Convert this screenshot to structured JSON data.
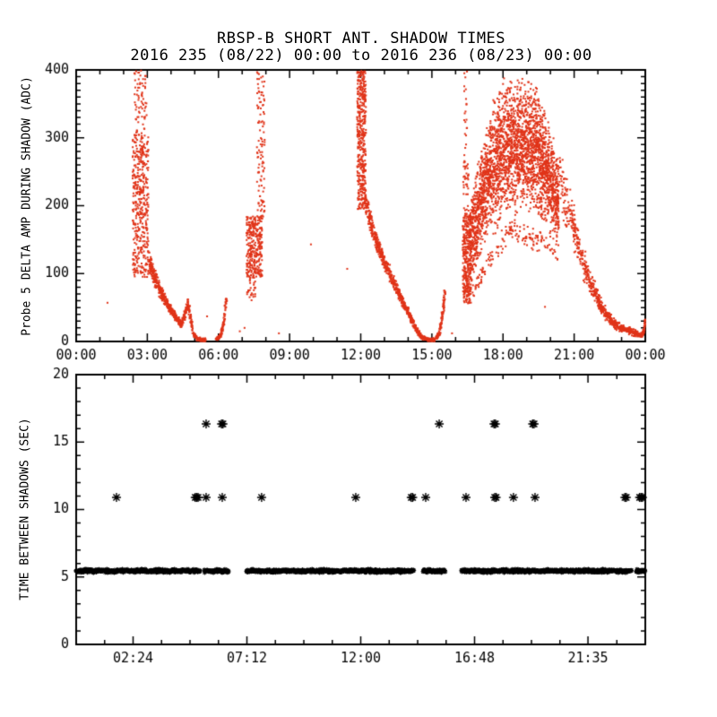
{
  "header": {
    "title": "RBSP-B SHORT ANT. SHADOW TIMES",
    "subtitle": "2016 235 (08/22) 00:00 to 2016 236 (08/23) 00:00"
  },
  "colors": {
    "background": "#ffffff",
    "axis": "#000000",
    "data_red": "#e03318",
    "marker_black": "#000000"
  },
  "chart_data": [
    {
      "type": "scatter",
      "panel": "top",
      "ylabel": "Probe 5 DELTA AMP DURING SHADOW (ADC)",
      "xlim_hours": [
        0,
        24
      ],
      "ylim": [
        0,
        400
      ],
      "x_minor_step_hours": 1,
      "y_minor_step": 10,
      "x_ticks": [
        {
          "h": 0,
          "label": "00:00"
        },
        {
          "h": 3,
          "label": "03:00"
        },
        {
          "h": 6,
          "label": "06:00"
        },
        {
          "h": 9,
          "label": "09:00"
        },
        {
          "h": 12,
          "label": "12:00"
        },
        {
          "h": 15,
          "label": "15:00"
        },
        {
          "h": 18,
          "label": "18:00"
        },
        {
          "h": 21,
          "label": "21:00"
        },
        {
          "h": 24,
          "label": "00:00"
        }
      ],
      "y_ticks": [
        {
          "v": 0,
          "label": "0"
        },
        {
          "v": 100,
          "label": "100"
        },
        {
          "v": 200,
          "label": "200"
        },
        {
          "v": 300,
          "label": "300"
        },
        {
          "v": 400,
          "label": "400"
        }
      ],
      "marker": "pixel-dot",
      "color": "#e03318",
      "segments": [
        {
          "kind": "box",
          "t": [
            2.38,
            3.05
          ],
          "v": [
            95,
            305
          ],
          "n": 420
        },
        {
          "kind": "box",
          "t": [
            2.42,
            2.98
          ],
          "v": [
            305,
            400
          ],
          "n": 70
        },
        {
          "kind": "curve",
          "n": 620,
          "jscale": 0.12,
          "pts": [
            [
              3.05,
              120
            ],
            [
              3.3,
              95
            ],
            [
              3.6,
              70
            ],
            [
              3.9,
              52
            ],
            [
              4.2,
              35
            ],
            [
              4.45,
              25
            ],
            [
              4.6,
              42
            ],
            [
              4.72,
              55
            ],
            [
              4.82,
              35
            ],
            [
              4.95,
              10
            ],
            [
              5.15,
              3
            ],
            [
              5.45,
              2
            ]
          ]
        },
        {
          "kind": "curve",
          "n": 110,
          "jscale": 0.1,
          "pts": [
            [
              5.9,
              3
            ],
            [
              6.1,
              9
            ],
            [
              6.22,
              28
            ],
            [
              6.33,
              62
            ]
          ]
        },
        {
          "kind": "box",
          "t": [
            7.62,
            7.95
          ],
          "v": [
            180,
            400
          ],
          "n": 110
        },
        {
          "kind": "box",
          "t": [
            7.18,
            7.85
          ],
          "v": [
            95,
            185
          ],
          "n": 300
        },
        {
          "kind": "box",
          "t": [
            7.2,
            7.55
          ],
          "v": [
            60,
            95
          ],
          "n": 30
        },
        {
          "kind": "box",
          "t": [
            11.85,
            12.22
          ],
          "v": [
            195,
            400
          ],
          "n": 420
        },
        {
          "kind": "curve",
          "n": 760,
          "jscale": 0.09,
          "pts": [
            [
              12.2,
              205
            ],
            [
              12.55,
              160
            ],
            [
              12.95,
              120
            ],
            [
              13.35,
              90
            ],
            [
              13.75,
              60
            ],
            [
              14.05,
              40
            ],
            [
              14.3,
              20
            ],
            [
              14.55,
              7
            ],
            [
              14.8,
              3
            ],
            [
              15.12,
              2
            ]
          ]
        },
        {
          "kind": "curve",
          "n": 120,
          "jscale": 0.1,
          "pts": [
            [
              15.18,
              4
            ],
            [
              15.32,
              12
            ],
            [
              15.44,
              38
            ],
            [
              15.55,
              72
            ]
          ]
        },
        {
          "kind": "box",
          "t": [
            16.3,
            16.65
          ],
          "v": [
            55,
            190
          ],
          "n": 300
        },
        {
          "kind": "box",
          "t": [
            16.32,
            16.55
          ],
          "v": [
            190,
            265
          ],
          "n": 35
        },
        {
          "kind": "box",
          "t": [
            16.36,
            16.5
          ],
          "v": [
            265,
            400
          ],
          "n": 22
        },
        {
          "kind": "blob",
          "n": 2700,
          "t": [
            16.6,
            20.35
          ],
          "lo": [
            [
              16.6,
              75
            ],
            [
              16.9,
              105
            ],
            [
              17.3,
              140
            ],
            [
              17.8,
              162
            ],
            [
              18.3,
              178
            ],
            [
              19.0,
              185
            ],
            [
              19.5,
              178
            ],
            [
              20.0,
              155
            ],
            [
              20.35,
              140
            ]
          ],
          "hi": [
            [
              16.6,
              205
            ],
            [
              16.9,
              258
            ],
            [
              17.3,
              322
            ],
            [
              17.7,
              372
            ],
            [
              18.0,
              392
            ],
            [
              18.5,
              396
            ],
            [
              19.0,
              392
            ],
            [
              19.4,
              384
            ],
            [
              19.8,
              345
            ],
            [
              20.1,
              305
            ],
            [
              20.35,
              270
            ]
          ]
        },
        {
          "kind": "blob",
          "n": 160,
          "t": [
            16.7,
            20.3
          ],
          "lo": [
            [
              16.7,
              58
            ],
            [
              18.3,
              148
            ],
            [
              20.3,
              112
            ]
          ],
          "hi": [
            [
              16.7,
              92
            ],
            [
              18.3,
              186
            ],
            [
              20.3,
              152
            ]
          ]
        },
        {
          "kind": "curve",
          "n": 650,
          "jscale": 0.2,
          "pts": [
            [
              20.35,
              250
            ],
            [
              20.7,
              205
            ],
            [
              21.05,
              160
            ],
            [
              21.4,
              115
            ],
            [
              21.75,
              80
            ],
            [
              22.05,
              58
            ],
            [
              22.35,
              40
            ],
            [
              22.65,
              28
            ],
            [
              22.95,
              20
            ],
            [
              23.3,
              16
            ],
            [
              23.6,
              12
            ],
            [
              23.78,
              8
            ]
          ]
        },
        {
          "kind": "curve",
          "n": 60,
          "jscale": 0.1,
          "pts": [
            [
              23.8,
              8
            ],
            [
              23.92,
              13
            ],
            [
              24.0,
              30
            ]
          ]
        },
        {
          "kind": "dots",
          "pts": [
            [
              1.32,
              57
            ],
            [
              5.52,
              37
            ],
            [
              6.9,
              15
            ],
            [
              7.1,
              20
            ],
            [
              8.55,
              12
            ],
            [
              9.9,
              143
            ],
            [
              11.43,
              107
            ],
            [
              13.38,
              94
            ],
            [
              15.85,
              12
            ],
            [
              19.77,
              51
            ]
          ]
        }
      ]
    },
    {
      "type": "scatter",
      "panel": "bottom",
      "ylabel": "TIME BETWEEN SHADOWS (SEC)",
      "xlim_hours": [
        0,
        24
      ],
      "ylim": [
        0,
        20
      ],
      "x_minor_step_hours": 1.2,
      "y_minor_step": 1,
      "x_ticks": [
        {
          "h": 2.4,
          "label": "02:24"
        },
        {
          "h": 7.2,
          "label": "07:12"
        },
        {
          "h": 12.0,
          "label": "12:00"
        },
        {
          "h": 16.8,
          "label": "16:48"
        },
        {
          "h": 21.583,
          "label": "21:35"
        }
      ],
      "y_ticks": [
        {
          "v": 0,
          "label": "0"
        },
        {
          "v": 5,
          "label": "5"
        },
        {
          "v": 10,
          "label": "10"
        },
        {
          "v": 15,
          "label": "15"
        },
        {
          "v": 20,
          "label": "20"
        }
      ],
      "marker": "asterisk",
      "color": "#000000",
      "band": {
        "value_sec": 5.45,
        "segments_hours": [
          [
            0,
            5.22
          ],
          [
            5.4,
            6.43
          ],
          [
            7.18,
            14.25
          ],
          [
            14.63,
            15.57
          ],
          [
            16.25,
            23.43
          ],
          [
            23.62,
            24
          ]
        ]
      },
      "level_10_9": {
        "value_sec": 10.9,
        "points_hours": [
          {
            "t": 1.7,
            "n": 1
          },
          {
            "t": 5.08,
            "n": 3
          },
          {
            "t": 5.48,
            "n": 1
          },
          {
            "t": 6.16,
            "n": 1
          },
          {
            "t": 7.82,
            "n": 1
          },
          {
            "t": 11.79,
            "n": 1
          },
          {
            "t": 14.16,
            "n": 2
          },
          {
            "t": 14.74,
            "n": 1
          },
          {
            "t": 16.44,
            "n": 1
          },
          {
            "t": 17.68,
            "n": 2
          },
          {
            "t": 18.44,
            "n": 1
          },
          {
            "t": 19.35,
            "n": 1
          },
          {
            "t": 23.17,
            "n": 2
          },
          {
            "t": 23.82,
            "n": 3
          }
        ]
      },
      "level_16_35": {
        "value_sec": 16.35,
        "points_hours": [
          {
            "t": 5.48,
            "n": 1
          },
          {
            "t": 6.16,
            "n": 2
          },
          {
            "t": 15.31,
            "n": 1
          },
          {
            "t": 17.65,
            "n": 2
          },
          {
            "t": 19.28,
            "n": 2
          }
        ]
      }
    }
  ]
}
